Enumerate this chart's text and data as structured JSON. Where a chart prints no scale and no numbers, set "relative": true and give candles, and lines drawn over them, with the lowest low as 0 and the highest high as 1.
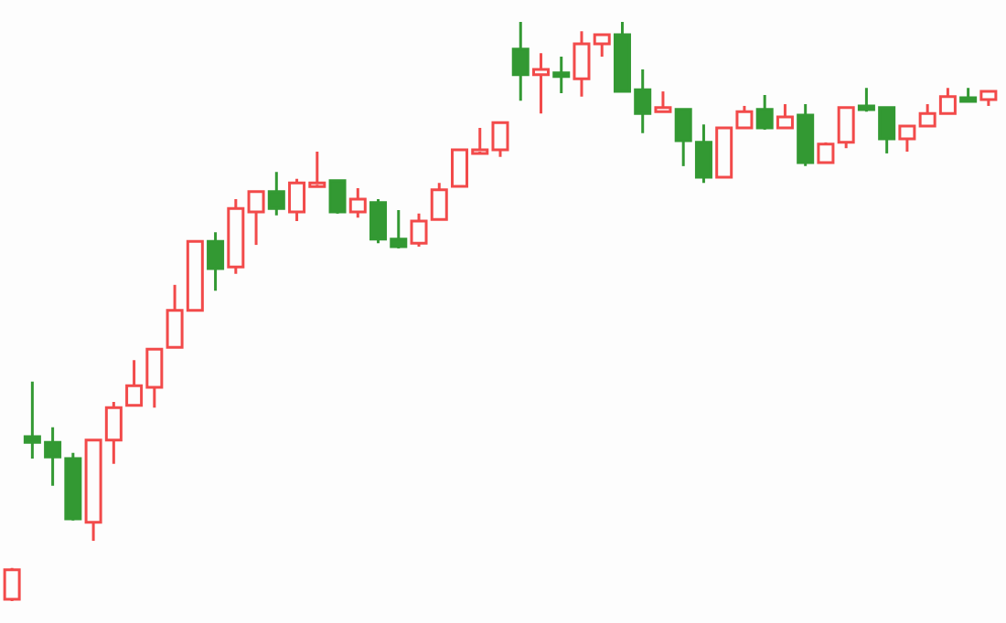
{
  "chart_data": {
    "type": "candlestick",
    "relative": true,
    "categories": [
      null,
      null,
      null,
      null,
      null,
      null,
      null,
      null,
      null,
      null,
      null,
      null,
      null,
      null,
      null,
      null,
      null,
      null,
      null,
      null,
      null,
      null,
      null,
      null,
      null,
      null,
      null,
      null,
      null,
      null,
      null,
      null,
      null,
      null,
      null,
      null,
      null,
      null,
      null,
      null,
      null,
      null,
      null,
      null,
      null,
      null,
      null,
      null,
      null
    ],
    "ohlc": [
      [
        0.003,
        0.057,
        0,
        0.054
      ],
      [
        0.284,
        0.379,
        0.246,
        0.274
      ],
      [
        0.274,
        0.3,
        0.199,
        0.249
      ],
      [
        0.246,
        0.256,
        0.139,
        0.142
      ],
      [
        0.136,
        0.278,
        0.104,
        0.278
      ],
      [
        0.278,
        0.344,
        0.237,
        0.334
      ],
      [
        0.338,
        0.416,
        0.338,
        0.372
      ],
      [
        0.369,
        0.435,
        0.334,
        0.435
      ],
      [
        0.438,
        0.546,
        0.438,
        0.502
      ],
      [
        0.502,
        0.621,
        0.502,
        0.621
      ],
      [
        0.621,
        0.637,
        0.536,
        0.574
      ],
      [
        0.577,
        0.694,
        0.565,
        0.678
      ],
      [
        0.672,
        0.707,
        0.615,
        0.707
      ],
      [
        0.707,
        0.741,
        0.666,
        0.678
      ],
      [
        0.672,
        0.729,
        0.656,
        0.722
      ],
      [
        0.719,
        0.776,
        0.719,
        0.722
      ],
      [
        0.726,
        0.726,
        0.669,
        0.672
      ],
      [
        0.672,
        0.713,
        0.662,
        0.694
      ],
      [
        0.688,
        0.694,
        0.618,
        0.625
      ],
      [
        0.625,
        0.675,
        0.609,
        0.612
      ],
      [
        0.618,
        0.669,
        0.612,
        0.656
      ],
      [
        0.659,
        0.722,
        0.659,
        0.71
      ],
      [
        0.716,
        0.779,
        0.716,
        0.779
      ],
      [
        0.776,
        0.817,
        0.776,
        0.779
      ],
      [
        0.779,
        0.826,
        0.767,
        0.826
      ],
      [
        0.953,
        1,
        0.864,
        0.909
      ],
      [
        0.909,
        0.946,
        0.842,
        0.918
      ],
      [
        0.912,
        0.94,
        0.877,
        0.909
      ],
      [
        0.902,
        0.984,
        0.871,
        0.962
      ],
      [
        0.962,
        0.978,
        0.94,
        0.978
      ],
      [
        0.978,
        1,
        0.88,
        0.88
      ],
      [
        0.883,
        0.918,
        0.808,
        0.842
      ],
      [
        0.845,
        0.88,
        0.845,
        0.852
      ],
      [
        0.849,
        0.849,
        0.751,
        0.795
      ],
      [
        0.792,
        0.823,
        0.722,
        0.732
      ],
      [
        0.732,
        0.817,
        0.732,
        0.817
      ],
      [
        0.817,
        0.855,
        0.817,
        0.845
      ],
      [
        0.849,
        0.874,
        0.814,
        0.817
      ],
      [
        0.817,
        0.858,
        0.817,
        0.836
      ],
      [
        0.839,
        0.858,
        0.751,
        0.757
      ],
      [
        0.757,
        0.792,
        0.757,
        0.789
      ],
      [
        0.792,
        0.852,
        0.782,
        0.852
      ],
      [
        0.855,
        0.886,
        0.845,
        0.849
      ],
      [
        0.852,
        0.852,
        0.773,
        0.798
      ],
      [
        0.798,
        0.82,
        0.776,
        0.82
      ],
      [
        0.82,
        0.858,
        0.82,
        0.842
      ],
      [
        0.842,
        0.886,
        0.842,
        0.871
      ],
      [
        0.869,
        0.886,
        0.866,
        0.866
      ],
      [
        0.866,
        0.88,
        0.855,
        0.88
      ]
    ],
    "colors": [
      "#f24a4a",
      "#339933",
      "#339933",
      "#339933",
      "#f24a4a",
      "#f24a4a",
      "#f24a4a",
      "#f24a4a",
      "#f24a4a",
      "#f24a4a",
      "#339933",
      "#f24a4a",
      "#f24a4a",
      "#339933",
      "#f24a4a",
      "#f24a4a",
      "#339933",
      "#f24a4a",
      "#339933",
      "#339933",
      "#f24a4a",
      "#f24a4a",
      "#f24a4a",
      "#f24a4a",
      "#f24a4a",
      "#339933",
      "#f24a4a",
      "#339933",
      "#f24a4a",
      "#f24a4a",
      "#339933",
      "#339933",
      "#f24a4a",
      "#339933",
      "#339933",
      "#f24a4a",
      "#f24a4a",
      "#339933",
      "#f24a4a",
      "#339933",
      "#f24a4a",
      "#f24a4a",
      "#339933",
      "#339933",
      "#f24a4a",
      "#f24a4a",
      "#f24a4a",
      "#339933",
      "#f24a4a"
    ]
  }
}
